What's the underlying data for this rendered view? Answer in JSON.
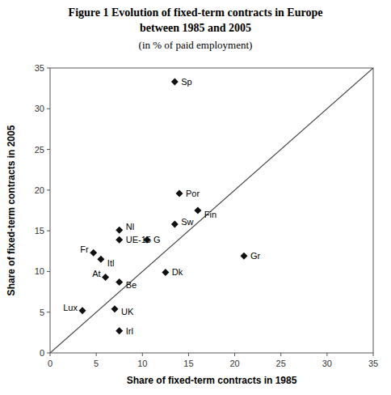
{
  "chart_data": {
    "type": "scatter",
    "title": [
      "Figure 1 Evolution of fixed-term contracts in Europe",
      "between 1985 and 2005"
    ],
    "subtitle": "(in % of paid employment)",
    "x_label": "Share of fixed-term contracts in 1985",
    "y_label": "Share of fixed-term contracts in 2005",
    "xlim": [
      0,
      35
    ],
    "ylim": [
      0,
      35
    ],
    "xticks": [
      0,
      5,
      10,
      15,
      20,
      25,
      30,
      35
    ],
    "yticks": [
      0,
      5,
      10,
      15,
      20,
      25,
      30,
      35
    ],
    "grid": false,
    "series": [
      {
        "type": "scatter",
        "marker": "diamond",
        "color": "#111111",
        "labels": [
          "Sp",
          "Por",
          "Fin",
          "Sw",
          "G",
          "Nl",
          "UE-15",
          "Fr",
          "Itl",
          "At",
          "Be",
          "Dk",
          "Gr",
          "Lux",
          "UK",
          "Irl"
        ],
        "x": [
          13.5,
          14.0,
          16.0,
          13.5,
          10.5,
          7.5,
          7.5,
          4.7,
          5.5,
          6.0,
          7.5,
          12.5,
          21.0,
          3.5,
          7.0,
          7.5
        ],
        "values": [
          33.3,
          19.6,
          17.5,
          15.8,
          13.9,
          15.1,
          13.9,
          12.3,
          11.5,
          9.3,
          8.7,
          9.9,
          11.9,
          5.2,
          5.4,
          2.7
        ]
      },
      {
        "type": "line",
        "color": "#444444",
        "x": [
          0,
          35
        ],
        "values": [
          0,
          35
        ]
      }
    ]
  }
}
